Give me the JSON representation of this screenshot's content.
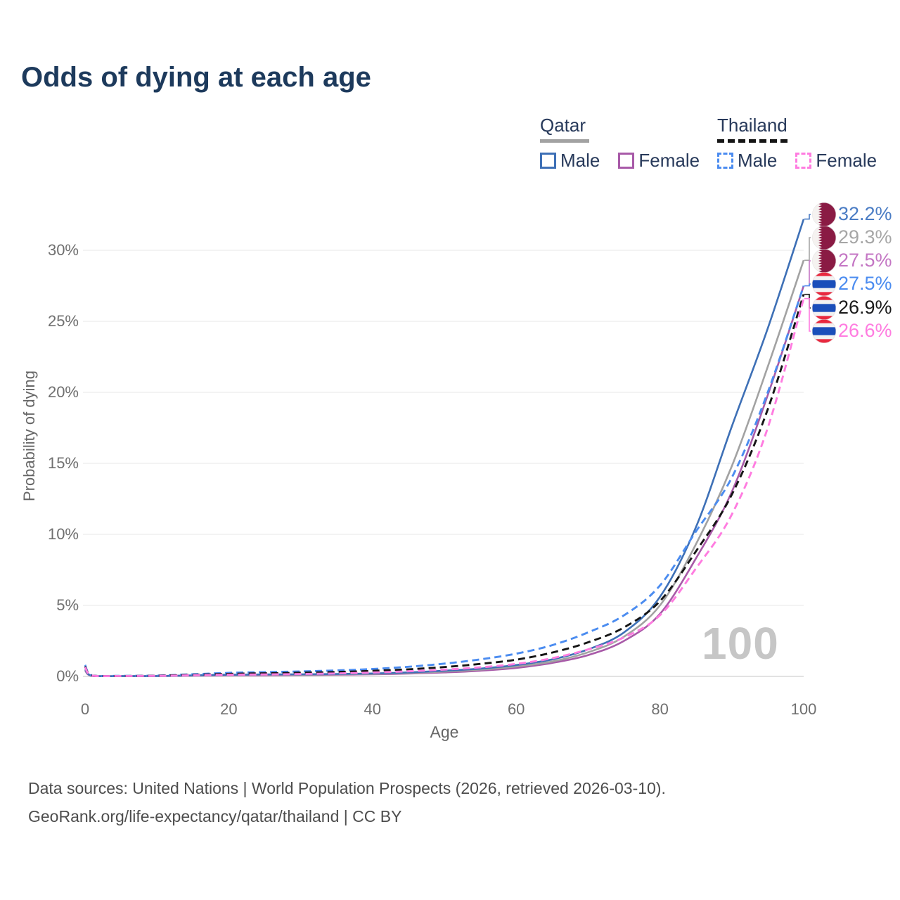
{
  "title": "Odds of dying at each age",
  "legend": {
    "qatar": {
      "label": "Qatar",
      "male": "Male",
      "female": "Female"
    },
    "thailand": {
      "label": "Thailand",
      "male": "Male",
      "female": "Female"
    }
  },
  "axes": {
    "y": {
      "label": "Probability of dying",
      "ticks": [
        "0%",
        "5%",
        "10%",
        "15%",
        "20%",
        "25%",
        "30%"
      ]
    },
    "x": {
      "label": "Age",
      "ticks": [
        "0",
        "20",
        "40",
        "60",
        "80",
        "100"
      ]
    }
  },
  "watermark": "100",
  "colors": {
    "qatar_male_line": "#3e70b6",
    "qatar_both_line": "#a2a2a2",
    "qatar_female_line": "#a85aa8",
    "thailand_male_line": "#4b8cf0",
    "thailand_both_line": "#151515",
    "thailand_female_line": "#ff7ce0",
    "qatar_flag_maroon": "#8a1b44",
    "thailand_flag_red": "#e8283e",
    "thailand_flag_blue": "#1a4eba",
    "gridline": "#ececec",
    "baseline": "#d8d8d8",
    "title_text": "#1d3a5c"
  },
  "end_labels": [
    {
      "flag": "qatar",
      "series": "Qatar Male",
      "value": 32.2,
      "value_label": "32.2%",
      "label_color": "#4a7cc4"
    },
    {
      "flag": "qatar",
      "series": "Qatar Both sexes",
      "value": 29.3,
      "value_label": "29.3%",
      "label_color": "#a6a6a6"
    },
    {
      "flag": "qatar",
      "series": "Qatar Female",
      "value": 27.5,
      "value_label": "27.5%",
      "label_color": "#c476c4"
    },
    {
      "flag": "thailand",
      "series": "Thailand Male",
      "value": 27.5,
      "value_label": "27.5%",
      "label_color": "#4b8cf0"
    },
    {
      "flag": "thailand",
      "series": "Thailand Both sexes",
      "value": 26.9,
      "value_label": "26.9%",
      "label_color": "#1a1a1a"
    },
    {
      "flag": "thailand",
      "series": "Thailand Female",
      "value": 26.6,
      "value_label": "26.6%",
      "label_color": "#ff7ce0"
    }
  ],
  "footer": {
    "line1": "Data sources: United Nations | World Population Prospects (2026, retrieved 2026-03-10).",
    "line2": "GeoRank.org/life-expectancy/qatar/thailand | CC BY"
  },
  "chart_data": {
    "type": "line",
    "title": "Odds of dying at each age",
    "xlabel": "Age",
    "ylabel": "Probability of dying",
    "xlim": [
      0,
      100
    ],
    "ylim_percent": [
      0,
      32.5
    ],
    "x_ticks": [
      0,
      20,
      40,
      60,
      80,
      100
    ],
    "y_ticks_percent": [
      0,
      5,
      10,
      15,
      20,
      25,
      30
    ],
    "grid": "horizontal",
    "legend_position": "top-right",
    "ages": [
      0,
      1,
      5,
      10,
      15,
      20,
      25,
      30,
      35,
      40,
      45,
      50,
      55,
      60,
      65,
      70,
      75,
      80,
      85,
      90,
      95,
      100
    ],
    "series": [
      {
        "name": "Qatar Female",
        "country": "Qatar",
        "sex": "Female",
        "style": "solid",
        "color": "#a85aa8",
        "values_percent": [
          0.4,
          0.03,
          0.02,
          0.02,
          0.05,
          0.07,
          0.08,
          0.1,
          0.12,
          0.15,
          0.2,
          0.28,
          0.4,
          0.6,
          0.95,
          1.5,
          2.5,
          4.4,
          8.3,
          13.0,
          19.8,
          27.5
        ]
      },
      {
        "name": "Qatar Both sexes",
        "country": "Qatar",
        "sex": "Both sexes",
        "style": "solid",
        "color": "#a2a2a2",
        "values_percent": [
          0.45,
          0.04,
          0.02,
          0.03,
          0.06,
          0.1,
          0.12,
          0.13,
          0.15,
          0.18,
          0.24,
          0.34,
          0.48,
          0.7,
          1.05,
          1.7,
          2.8,
          5.0,
          9.3,
          14.8,
          21.8,
          29.3
        ]
      },
      {
        "name": "Qatar Male",
        "country": "Qatar",
        "sex": "Male",
        "style": "solid",
        "color": "#3e70b6",
        "values_percent": [
          0.5,
          0.04,
          0.02,
          0.03,
          0.07,
          0.12,
          0.14,
          0.15,
          0.17,
          0.21,
          0.28,
          0.4,
          0.55,
          0.8,
          1.2,
          1.9,
          3.1,
          5.6,
          10.5,
          17.6,
          24.5,
          32.2
        ]
      },
      {
        "name": "Thailand Male",
        "country": "Thailand",
        "sex": "Male",
        "style": "dashed",
        "color": "#4b8cf0",
        "values_percent": [
          0.8,
          0.06,
          0.04,
          0.06,
          0.15,
          0.25,
          0.3,
          0.35,
          0.42,
          0.52,
          0.68,
          0.9,
          1.2,
          1.6,
          2.2,
          3.1,
          4.3,
          6.4,
          10.2,
          14.0,
          20.0,
          27.5
        ]
      },
      {
        "name": "Thailand Both sexes",
        "country": "Thailand",
        "sex": "Both sexes",
        "style": "dashed",
        "color": "#151515",
        "values_percent": [
          0.7,
          0.05,
          0.03,
          0.05,
          0.11,
          0.18,
          0.22,
          0.26,
          0.31,
          0.39,
          0.5,
          0.66,
          0.88,
          1.18,
          1.68,
          2.4,
          3.45,
          5.3,
          8.8,
          12.8,
          18.8,
          26.9
        ]
      },
      {
        "name": "Thailand Female",
        "country": "Thailand",
        "sex": "Female",
        "style": "dashed",
        "color": "#ff7ce0",
        "values_percent": [
          0.65,
          0.05,
          0.03,
          0.04,
          0.08,
          0.12,
          0.14,
          0.17,
          0.21,
          0.27,
          0.36,
          0.48,
          0.64,
          0.88,
          1.28,
          1.9,
          2.75,
          4.3,
          7.6,
          11.4,
          17.5,
          26.6
        ]
      }
    ]
  }
}
